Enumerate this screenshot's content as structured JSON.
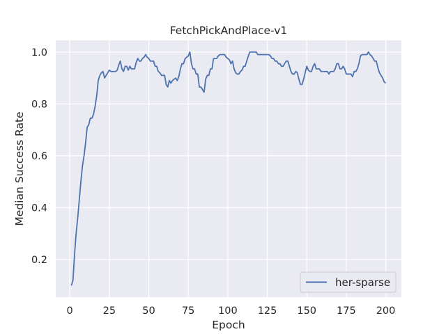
{
  "chart_data": {
    "type": "line",
    "title": "FetchPickAndPlace-v1",
    "xlabel": "Epoch",
    "ylabel": "Median Success Rate",
    "xlim": [
      -8.9,
      209.9
    ],
    "ylim": [
      0.055,
      1.045
    ],
    "xticks": [
      0,
      25,
      50,
      75,
      100,
      125,
      150,
      175,
      200
    ],
    "xtick_labels": [
      "0",
      "25",
      "50",
      "75",
      "100",
      "125",
      "150",
      "175",
      "200"
    ],
    "yticks": [
      0.2,
      0.4,
      0.6,
      0.8,
      1.0
    ],
    "ytick_labels": [
      "0.2",
      "0.4",
      "0.6",
      "0.8",
      "1.0"
    ],
    "grid": true,
    "legend_position": "lower-right",
    "series": [
      {
        "name": "her-sparse",
        "color": "#4c72b0",
        "points": [
          [
            1,
            0.1
          ],
          [
            2,
            0.12
          ],
          [
            3,
            0.22
          ],
          [
            4,
            0.3
          ],
          [
            5,
            0.36
          ],
          [
            6,
            0.43
          ],
          [
            7,
            0.5
          ],
          [
            8,
            0.56
          ],
          [
            9,
            0.6
          ],
          [
            10,
            0.65
          ],
          [
            11,
            0.71
          ],
          [
            12,
            0.72
          ],
          [
            13,
            0.745
          ],
          [
            14,
            0.745
          ],
          [
            15,
            0.76
          ],
          [
            16,
            0.79
          ],
          [
            17,
            0.83
          ],
          [
            18,
            0.89
          ],
          [
            19,
            0.91
          ],
          [
            20,
            0.92
          ],
          [
            21,
            0.925
          ],
          [
            22,
            0.9
          ],
          [
            23,
            0.91
          ],
          [
            24,
            0.92
          ],
          [
            25,
            0.93
          ],
          [
            26,
            0.925
          ],
          [
            27,
            0.925
          ],
          [
            28,
            0.925
          ],
          [
            29,
            0.925
          ],
          [
            30,
            0.93
          ],
          [
            31,
            0.95
          ],
          [
            32,
            0.965
          ],
          [
            33,
            0.935
          ],
          [
            34,
            0.925
          ],
          [
            35,
            0.945
          ],
          [
            36,
            0.945
          ],
          [
            37,
            0.93
          ],
          [
            38,
            0.945
          ],
          [
            39,
            0.935
          ],
          [
            40,
            0.935
          ],
          [
            41,
            0.935
          ],
          [
            42,
            0.96
          ],
          [
            43,
            0.975
          ],
          [
            44,
            0.965
          ],
          [
            45,
            0.965
          ],
          [
            46,
            0.975
          ],
          [
            47,
            0.98
          ],
          [
            48,
            0.99
          ],
          [
            49,
            0.98
          ],
          [
            50,
            0.975
          ],
          [
            51,
            0.965
          ],
          [
            52,
            0.965
          ],
          [
            53,
            0.965
          ],
          [
            54,
            0.945
          ],
          [
            55,
            0.945
          ],
          [
            56,
            0.925
          ],
          [
            57,
            0.92
          ],
          [
            58,
            0.91
          ],
          [
            59,
            0.91
          ],
          [
            60,
            0.91
          ],
          [
            61,
            0.875
          ],
          [
            62,
            0.865
          ],
          [
            63,
            0.89
          ],
          [
            64,
            0.88
          ],
          [
            65,
            0.89
          ],
          [
            66,
            0.895
          ],
          [
            67,
            0.9
          ],
          [
            68,
            0.89
          ],
          [
            69,
            0.905
          ],
          [
            70,
            0.935
          ],
          [
            71,
            0.955
          ],
          [
            72,
            0.955
          ],
          [
            73,
            0.975
          ],
          [
            74,
            0.98
          ],
          [
            75,
            0.985
          ],
          [
            76,
            1.0
          ],
          [
            77,
            0.955
          ],
          [
            78,
            0.935
          ],
          [
            79,
            0.935
          ],
          [
            80,
            0.915
          ],
          [
            81,
            0.915
          ],
          [
            82,
            0.865
          ],
          [
            83,
            0.865
          ],
          [
            84,
            0.855
          ],
          [
            85,
            0.845
          ],
          [
            86,
            0.895
          ],
          [
            87,
            0.91
          ],
          [
            88,
            0.91
          ],
          [
            89,
            0.935
          ],
          [
            90,
            0.935
          ],
          [
            91,
            0.975
          ],
          [
            92,
            0.975
          ],
          [
            93,
            0.975
          ],
          [
            94,
            0.985
          ],
          [
            95,
            0.99
          ],
          [
            96,
            0.99
          ],
          [
            97,
            0.99
          ],
          [
            98,
            0.99
          ],
          [
            99,
            0.98
          ],
          [
            100,
            0.975
          ],
          [
            101,
            0.97
          ],
          [
            102,
            0.955
          ],
          [
            103,
            0.965
          ],
          [
            104,
            0.935
          ],
          [
            105,
            0.92
          ],
          [
            106,
            0.915
          ],
          [
            107,
            0.915
          ],
          [
            108,
            0.925
          ],
          [
            109,
            0.93
          ],
          [
            110,
            0.945
          ],
          [
            111,
            0.945
          ],
          [
            112,
            0.965
          ],
          [
            113,
            0.985
          ],
          [
            114,
            1.0
          ],
          [
            115,
            1.0
          ],
          [
            116,
            1.0
          ],
          [
            117,
            1.0
          ],
          [
            118,
            1.0
          ],
          [
            119,
            0.99
          ],
          [
            120,
            0.99
          ],
          [
            121,
            0.99
          ],
          [
            122,
            0.99
          ],
          [
            123,
            0.99
          ],
          [
            124,
            0.99
          ],
          [
            125,
            0.99
          ],
          [
            126,
            0.99
          ],
          [
            127,
            0.985
          ],
          [
            128,
            0.975
          ],
          [
            129,
            0.975
          ],
          [
            130,
            0.965
          ],
          [
            131,
            0.965
          ],
          [
            132,
            0.955
          ],
          [
            133,
            0.955
          ],
          [
            134,
            0.945
          ],
          [
            135,
            0.945
          ],
          [
            136,
            0.955
          ],
          [
            137,
            0.965
          ],
          [
            138,
            0.965
          ],
          [
            139,
            0.945
          ],
          [
            140,
            0.925
          ],
          [
            141,
            0.915
          ],
          [
            142,
            0.915
          ],
          [
            143,
            0.925
          ],
          [
            144,
            0.92
          ],
          [
            145,
            0.895
          ],
          [
            146,
            0.875
          ],
          [
            147,
            0.875
          ],
          [
            148,
            0.895
          ],
          [
            149,
            0.92
          ],
          [
            150,
            0.945
          ],
          [
            151,
            0.93
          ],
          [
            152,
            0.925
          ],
          [
            153,
            0.925
          ],
          [
            154,
            0.945
          ],
          [
            155,
            0.955
          ],
          [
            156,
            0.935
          ],
          [
            157,
            0.935
          ],
          [
            158,
            0.935
          ],
          [
            159,
            0.925
          ],
          [
            160,
            0.925
          ],
          [
            161,
            0.925
          ],
          [
            162,
            0.925
          ],
          [
            163,
            0.925
          ],
          [
            164,
            0.915
          ],
          [
            165,
            0.925
          ],
          [
            166,
            0.925
          ],
          [
            167,
            0.925
          ],
          [
            168,
            0.935
          ],
          [
            169,
            0.955
          ],
          [
            170,
            0.955
          ],
          [
            171,
            0.935
          ],
          [
            172,
            0.935
          ],
          [
            173,
            0.945
          ],
          [
            174,
            0.935
          ],
          [
            175,
            0.915
          ],
          [
            176,
            0.915
          ],
          [
            177,
            0.915
          ],
          [
            178,
            0.915
          ],
          [
            179,
            0.905
          ],
          [
            180,
            0.925
          ],
          [
            181,
            0.925
          ],
          [
            182,
            0.935
          ],
          [
            183,
            0.955
          ],
          [
            184,
            0.985
          ],
          [
            185,
            0.99
          ],
          [
            186,
            0.99
          ],
          [
            187,
            0.99
          ],
          [
            188,
            0.99
          ],
          [
            189,
            1.0
          ],
          [
            190,
            0.99
          ],
          [
            191,
            0.985
          ],
          [
            192,
            0.975
          ],
          [
            193,
            0.965
          ],
          [
            194,
            0.965
          ],
          [
            195,
            0.94
          ],
          [
            196,
            0.92
          ],
          [
            197,
            0.91
          ],
          [
            198,
            0.9
          ],
          [
            199,
            0.885
          ],
          [
            200,
            0.88
          ]
        ]
      }
    ]
  }
}
